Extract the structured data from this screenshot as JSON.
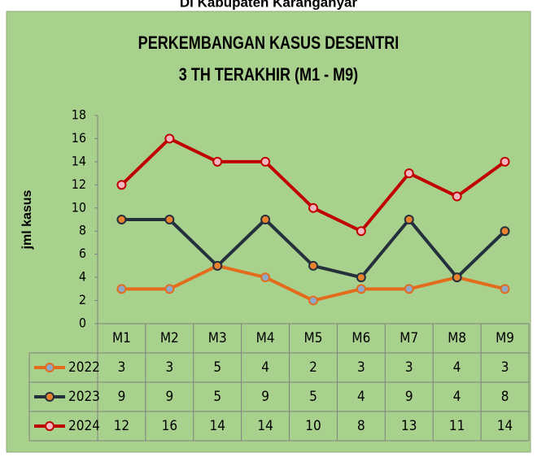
{
  "heading": "Di Kabupaten Karanganyar",
  "chart_data": {
    "type": "line",
    "title": [
      "PERKEMBANGAN KASUS DESENTRI",
      "3 TH TERAKHIR (M1 - M9)"
    ],
    "y_label": "jml kasus",
    "categories": [
      "M1",
      "M2",
      "M3",
      "M4",
      "M5",
      "M6",
      "M7",
      "M8",
      "M9"
    ],
    "series": [
      {
        "name": "2022",
        "color": "#e36c1c",
        "marker_color": "#8ea9c8",
        "values": [
          3,
          3,
          5,
          4,
          2,
          3,
          3,
          4,
          3
        ]
      },
      {
        "name": "2023",
        "color": "#25303d",
        "marker_color": "#e8822e",
        "values": [
          9,
          9,
          5,
          9,
          5,
          4,
          9,
          4,
          8
        ]
      },
      {
        "name": "2024",
        "color": "#c00000",
        "marker_color": "#f4b6c0",
        "values": [
          12,
          16,
          14,
          14,
          10,
          8,
          13,
          11,
          14
        ]
      }
    ],
    "ylim": [
      0,
      18
    ],
    "yticks": [
      0,
      2,
      4,
      6,
      8,
      10,
      12,
      14,
      16,
      18
    ],
    "background": "#a9d18e",
    "data_table": true
  }
}
